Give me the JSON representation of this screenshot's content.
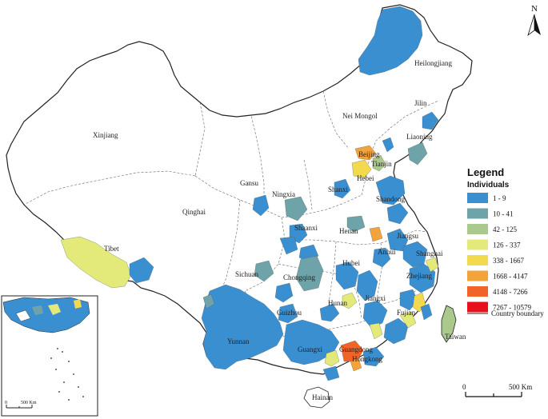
{
  "colors": {
    "class1": "#3a8fd1",
    "class2": "#6fa3aa",
    "class3": "#a9c98d",
    "class4": "#e4ea7a",
    "class5": "#f3d94e",
    "class6": "#f2a33c",
    "class7": "#f0642a",
    "class8": "#e8111b",
    "boundary": "#222222",
    "province_line": "#666666"
  },
  "legend": {
    "title": "Legend",
    "subtitle": "Individuals",
    "classes": [
      {
        "label": "1 - 9",
        "color": "#3a8fd1"
      },
      {
        "label": "10 - 41",
        "color": "#6fa3aa"
      },
      {
        "label": "42 - 125",
        "color": "#a9c98d"
      },
      {
        "label": "126 - 337",
        "color": "#e4ea7a"
      },
      {
        "label": "338 - 1667",
        "color": "#f3d94e"
      },
      {
        "label": "1668 - 4147",
        "color": "#f2a33c"
      },
      {
        "label": "4148 - 7266",
        "color": "#f0642a"
      },
      {
        "label": "7267 - 10579",
        "color": "#e8111b"
      }
    ],
    "boundary_label": "Country boundary"
  },
  "provinces": {
    "heilongjiang": "Heilongjiang",
    "jilin": "Jilin",
    "liaoning": "Liaoning",
    "nei_mongol": "Nei Mongol",
    "xinjiang": "Xinjiang",
    "beijing": "Beijing",
    "tianjin": "Tianjin",
    "hebei": "Hebei",
    "gansu": "Gansu",
    "ningxia": "Ningxia",
    "shanxi": "Shanxi",
    "shandong": "Shandong",
    "qinghai": "Qinghai",
    "henan": "Henan",
    "jiangsu": "Jiangsu",
    "shaanxi": "Shaanxi",
    "anhui": "Anhui",
    "shanghai": "Shanghai",
    "tibet": "Tibet",
    "hubei": "Hubei",
    "sichuan": "Sichuan",
    "chongqing": "Chongqing",
    "zhejiang": "Zhejiang",
    "hunan": "Hunan",
    "jiangxi": "Jiangxi",
    "guizhou": "Guizhou",
    "fujian": "Fujian",
    "taiwan": "Taiwan",
    "yunnan": "Yunnan",
    "guangxi": "Guangxi",
    "guangdong": "Guangdong",
    "hongkong": "Hongkong",
    "hainan": "Hainan"
  },
  "north_label": "N",
  "scale_bar": {
    "start": "0",
    "end": "500 Km"
  },
  "inset_scale": {
    "start": "0",
    "end": "500 Km"
  }
}
